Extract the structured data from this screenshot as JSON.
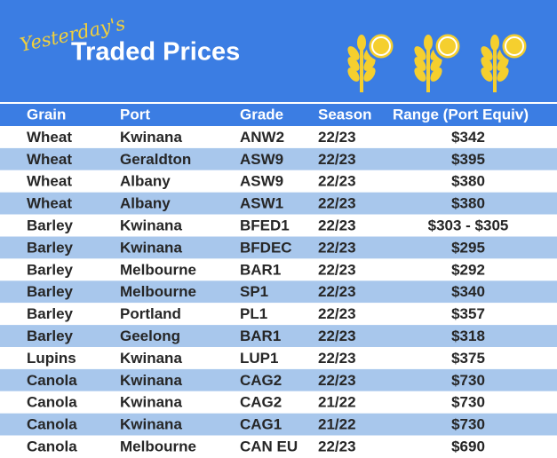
{
  "header": {
    "tagline": "Yesterday's",
    "title": "Traded Prices"
  },
  "table": {
    "columns": [
      "Grain",
      "Port",
      "Grade",
      "Season",
      "Range (Port Equiv)"
    ],
    "rows": [
      [
        "Wheat",
        "Kwinana",
        "ANW2",
        "22/23",
        "$342"
      ],
      [
        "Wheat",
        "Geraldton",
        "ASW9",
        "22/23",
        "$395"
      ],
      [
        "Wheat",
        "Albany",
        "ASW9",
        "22/23",
        "$380"
      ],
      [
        "Wheat",
        "Albany",
        "ASW1",
        "22/23",
        "$380"
      ],
      [
        "Barley",
        "Kwinana",
        "BFED1",
        "22/23",
        "$303 - $305"
      ],
      [
        "Barley",
        "Kwinana",
        "BFDEC",
        "22/23",
        "$295"
      ],
      [
        "Barley",
        "Melbourne",
        "BAR1",
        "22/23",
        "$292"
      ],
      [
        "Barley",
        "Melbourne",
        "SP1",
        "22/23",
        "$340"
      ],
      [
        "Barley",
        "Portland",
        "PL1",
        "22/23",
        "$357"
      ],
      [
        "Barley",
        "Geelong",
        "BAR1",
        "22/23",
        "$318"
      ],
      [
        "Lupins",
        "Kwinana",
        "LUP1",
        "22/23",
        "$375"
      ],
      [
        "Canola",
        "Kwinana",
        "CAG2",
        "22/23",
        "$730"
      ],
      [
        "Canola",
        "Kwinana",
        "CAG2",
        "21/22",
        "$730"
      ],
      [
        "Canola",
        "Kwinana",
        "CAG1",
        "21/22",
        "$730"
      ],
      [
        "Canola",
        "Melbourne",
        "CAN EU",
        "22/23",
        "$690"
      ]
    ]
  }
}
